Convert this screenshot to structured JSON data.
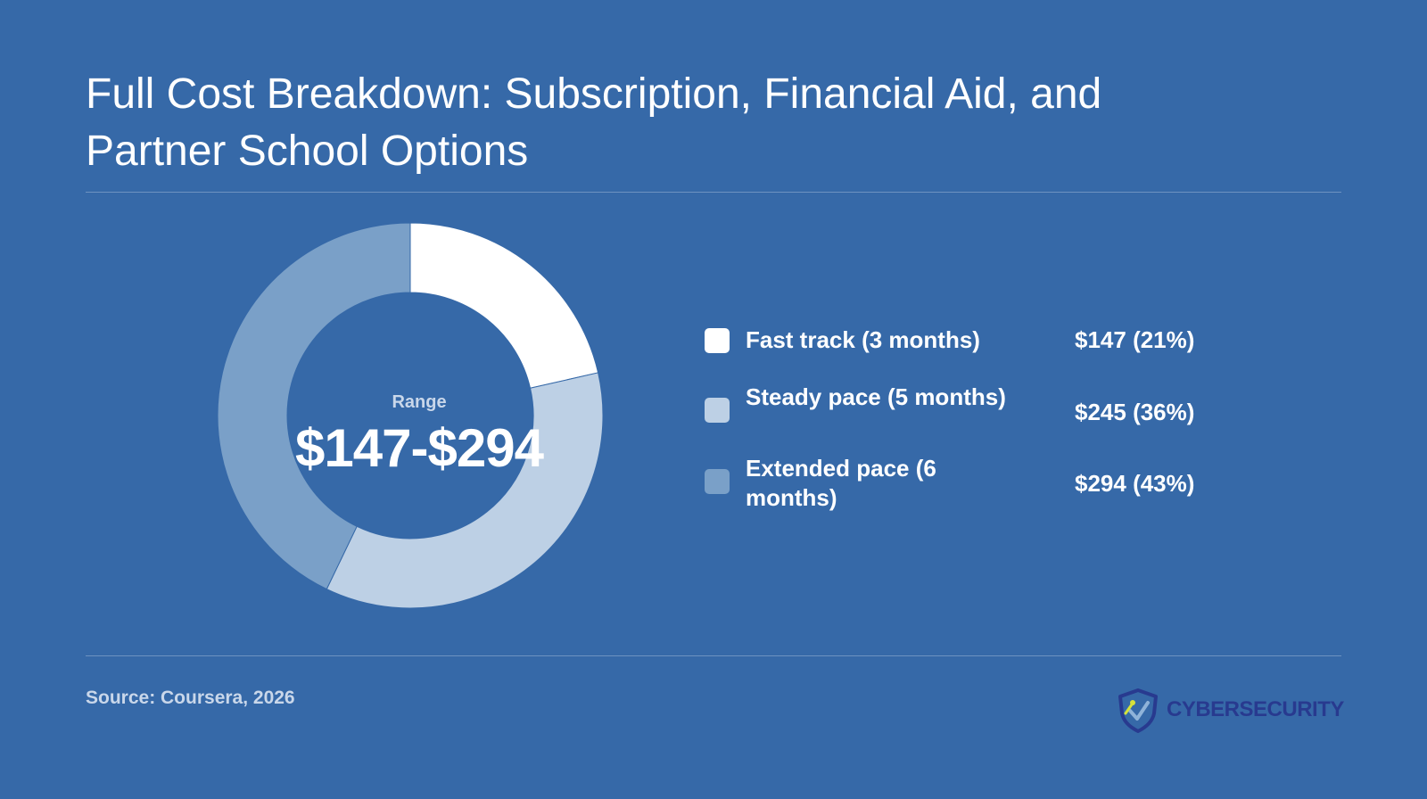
{
  "title": "Full Cost Breakdown: Subscription, Financial Aid, and Partner School Options",
  "source": "Source: Coursera, 2026",
  "logo": {
    "text": "CYBERSECURITY",
    "icon": "shield-icon",
    "text_color": "#283a8f"
  },
  "colors": {
    "background": "#3669a8",
    "fast": "#ffffff",
    "steady": "#bdd0e5",
    "extended": "#7aa0c8"
  },
  "chart_data": {
    "type": "pie",
    "donut": true,
    "title": "Full Cost Breakdown: Subscription, Financial Aid, and Partner School Options",
    "center_label": "Range",
    "center_value": "$147-$294",
    "legend_position": "right",
    "slices": [
      {
        "label": "Fast track (3 months)",
        "value": 147,
        "percent": 21,
        "display": "$147 (21%)",
        "color": "#ffffff"
      },
      {
        "label": "Steady pace (5 months)",
        "value": 245,
        "percent": 36,
        "display": "$245 (36%)",
        "color": "#bdd0e5"
      },
      {
        "label": "Extended pace (6 months)",
        "value": 294,
        "percent": 43,
        "display": "$294 (43%)",
        "color": "#7aa0c8"
      }
    ]
  }
}
